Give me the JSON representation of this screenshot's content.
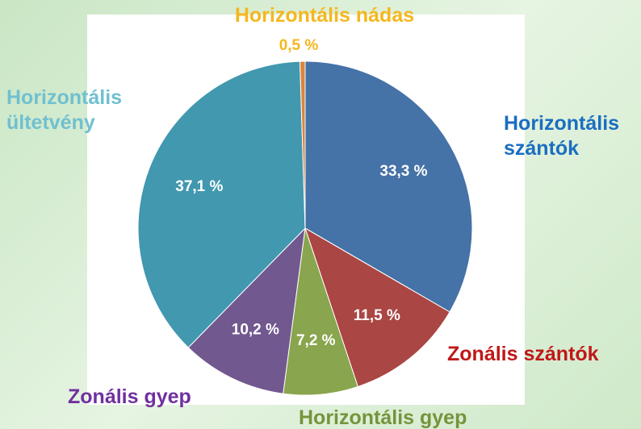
{
  "chart_data": {
    "type": "pie",
    "categories": [
      "Horizontális szántók",
      "Zonális szántók",
      "Horizontális gyep",
      "Zonális gyep",
      "Horizontális ültetvény",
      "Horizontális nádas"
    ],
    "values": [
      33.3,
      11.5,
      7.2,
      10.2,
      37.1,
      0.5
    ],
    "value_labels": [
      "33,3 %",
      "11,5 %",
      "7,2 %",
      "10,2 %",
      "37,1 %",
      "0,5 %"
    ],
    "colors": [
      "#4572a7",
      "#aa4643",
      "#89a54e",
      "#71588f",
      "#4198af",
      "#db843d"
    ],
    "label_colors": [
      "#1a6ec0",
      "#c01818",
      "#77933c",
      "#7030a0",
      "#70c0d0",
      "#f5b71e"
    ]
  }
}
